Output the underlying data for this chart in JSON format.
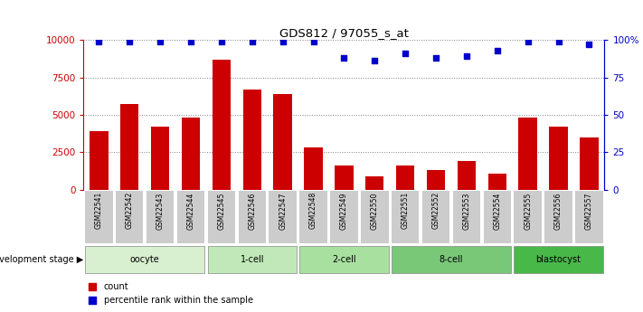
{
  "title": "GDS812 / 97055_s_at",
  "samples": [
    "GSM22541",
    "GSM22542",
    "GSM22543",
    "GSM22544",
    "GSM22545",
    "GSM22546",
    "GSM22547",
    "GSM22548",
    "GSM22549",
    "GSM22550",
    "GSM22551",
    "GSM22552",
    "GSM22553",
    "GSM22554",
    "GSM22555",
    "GSM22556",
    "GSM22557"
  ],
  "counts": [
    3900,
    5700,
    4200,
    4800,
    8700,
    6700,
    6400,
    2800,
    1600,
    900,
    1600,
    1300,
    1900,
    1100,
    4800,
    4200,
    3500
  ],
  "percentiles": [
    99,
    99,
    99,
    99,
    99,
    99,
    99,
    99,
    88,
    86,
    91,
    88,
    89,
    93,
    99,
    99,
    97
  ],
  "bar_color": "#CC0000",
  "dot_color": "#0000CC",
  "ylim_left": [
    0,
    10000
  ],
  "ylim_right": [
    0,
    100
  ],
  "yticks_left": [
    0,
    2500,
    5000,
    7500,
    10000
  ],
  "yticks_right": [
    0,
    25,
    50,
    75,
    100
  ],
  "grid_values": [
    2500,
    5000,
    7500,
    10000
  ],
  "stages": [
    {
      "label": "oocyte",
      "start": 0,
      "end": 3
    },
    {
      "label": "1-cell",
      "start": 4,
      "end": 6
    },
    {
      "label": "2-cell",
      "start": 7,
      "end": 9
    },
    {
      "label": "8-cell",
      "start": 10,
      "end": 13
    },
    {
      "label": "blastocyst",
      "start": 14,
      "end": 16
    }
  ],
  "stage_colors": [
    "#d8f0d0",
    "#c0e8b8",
    "#a8e0a0",
    "#78c878",
    "#48b848"
  ],
  "legend_count_label": "count",
  "legend_pct_label": "percentile rank within the sample",
  "dev_stage_label": "development stage",
  "tick_bg_color": "#cccccc"
}
